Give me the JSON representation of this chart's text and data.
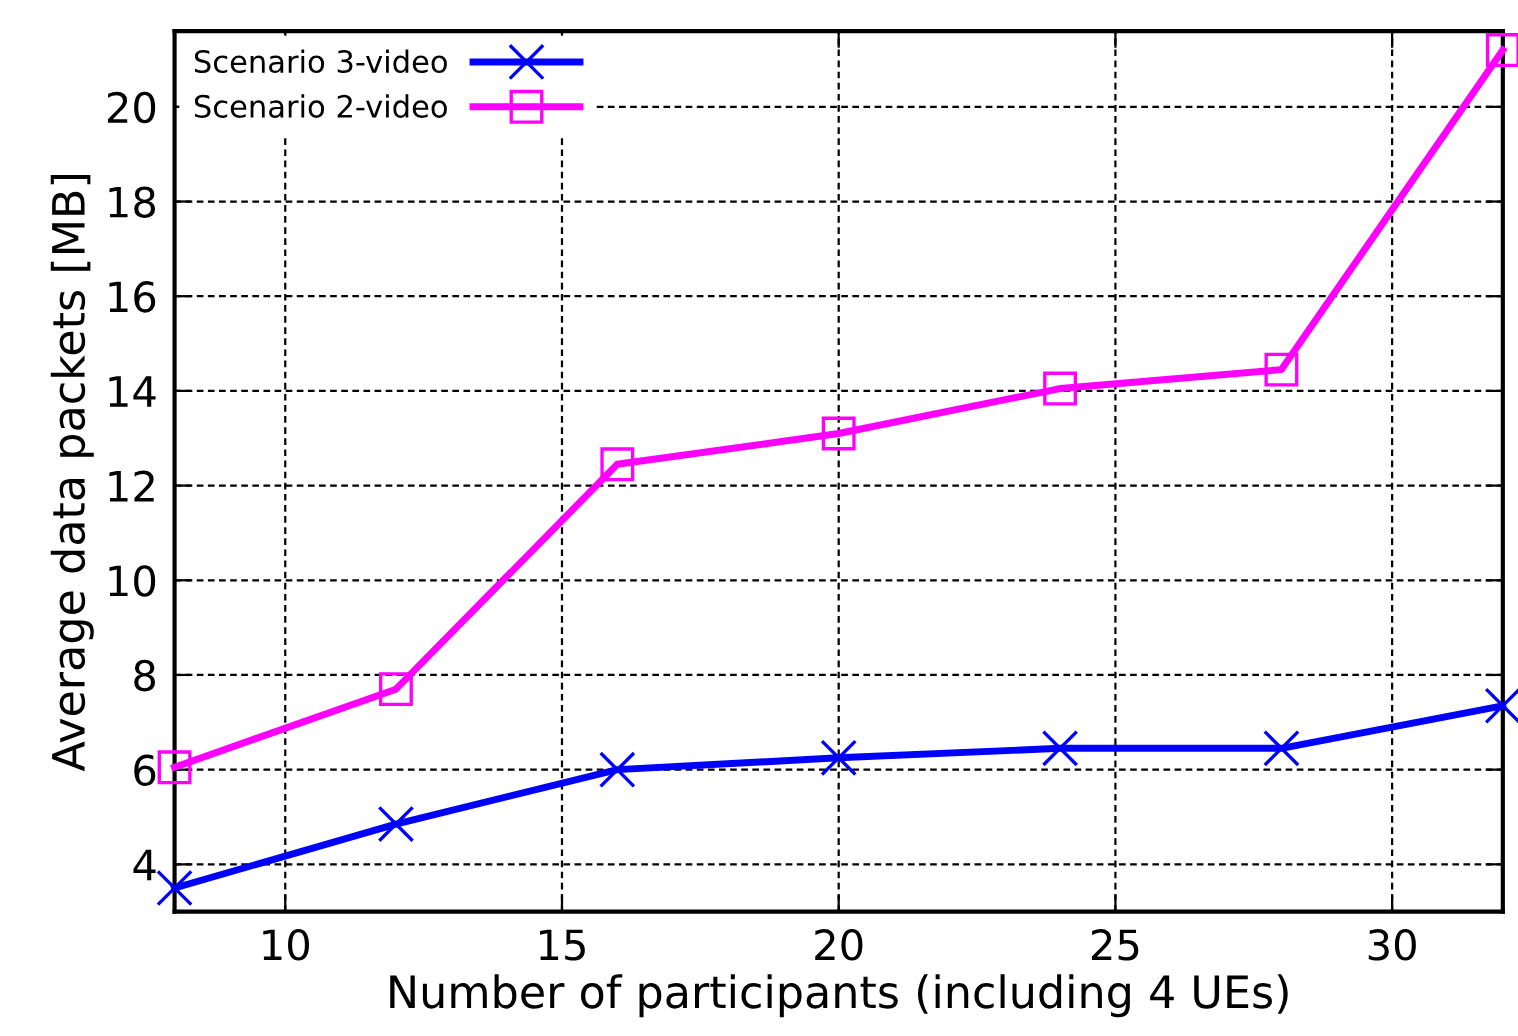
{
  "chart_data": {
    "type": "line",
    "xlabel": "Number of participants (including 4 UEs)",
    "ylabel": "Average data packets [MB]",
    "x": [
      8,
      12,
      16,
      20,
      24,
      28,
      32
    ],
    "series": [
      {
        "name": "Scenario 3-video",
        "color": "#0000ff",
        "marker": "cross",
        "values": [
          3.5,
          4.85,
          6.0,
          6.25,
          6.45,
          6.45,
          7.35
        ]
      },
      {
        "name": "Scenario 2-video",
        "color": "#ff00ff",
        "marker": "square",
        "values": [
          6.05,
          7.7,
          12.45,
          13.1,
          14.05,
          14.45,
          21.2
        ]
      }
    ],
    "xlim": [
      8,
      32
    ],
    "ylim": [
      3,
      21.6
    ],
    "xticks": [
      10,
      15,
      20,
      25,
      30
    ],
    "yticks": [
      4,
      6,
      8,
      10,
      12,
      14,
      16,
      18,
      20
    ],
    "grid": true,
    "legend": "top left",
    "line_style": "solid"
  }
}
